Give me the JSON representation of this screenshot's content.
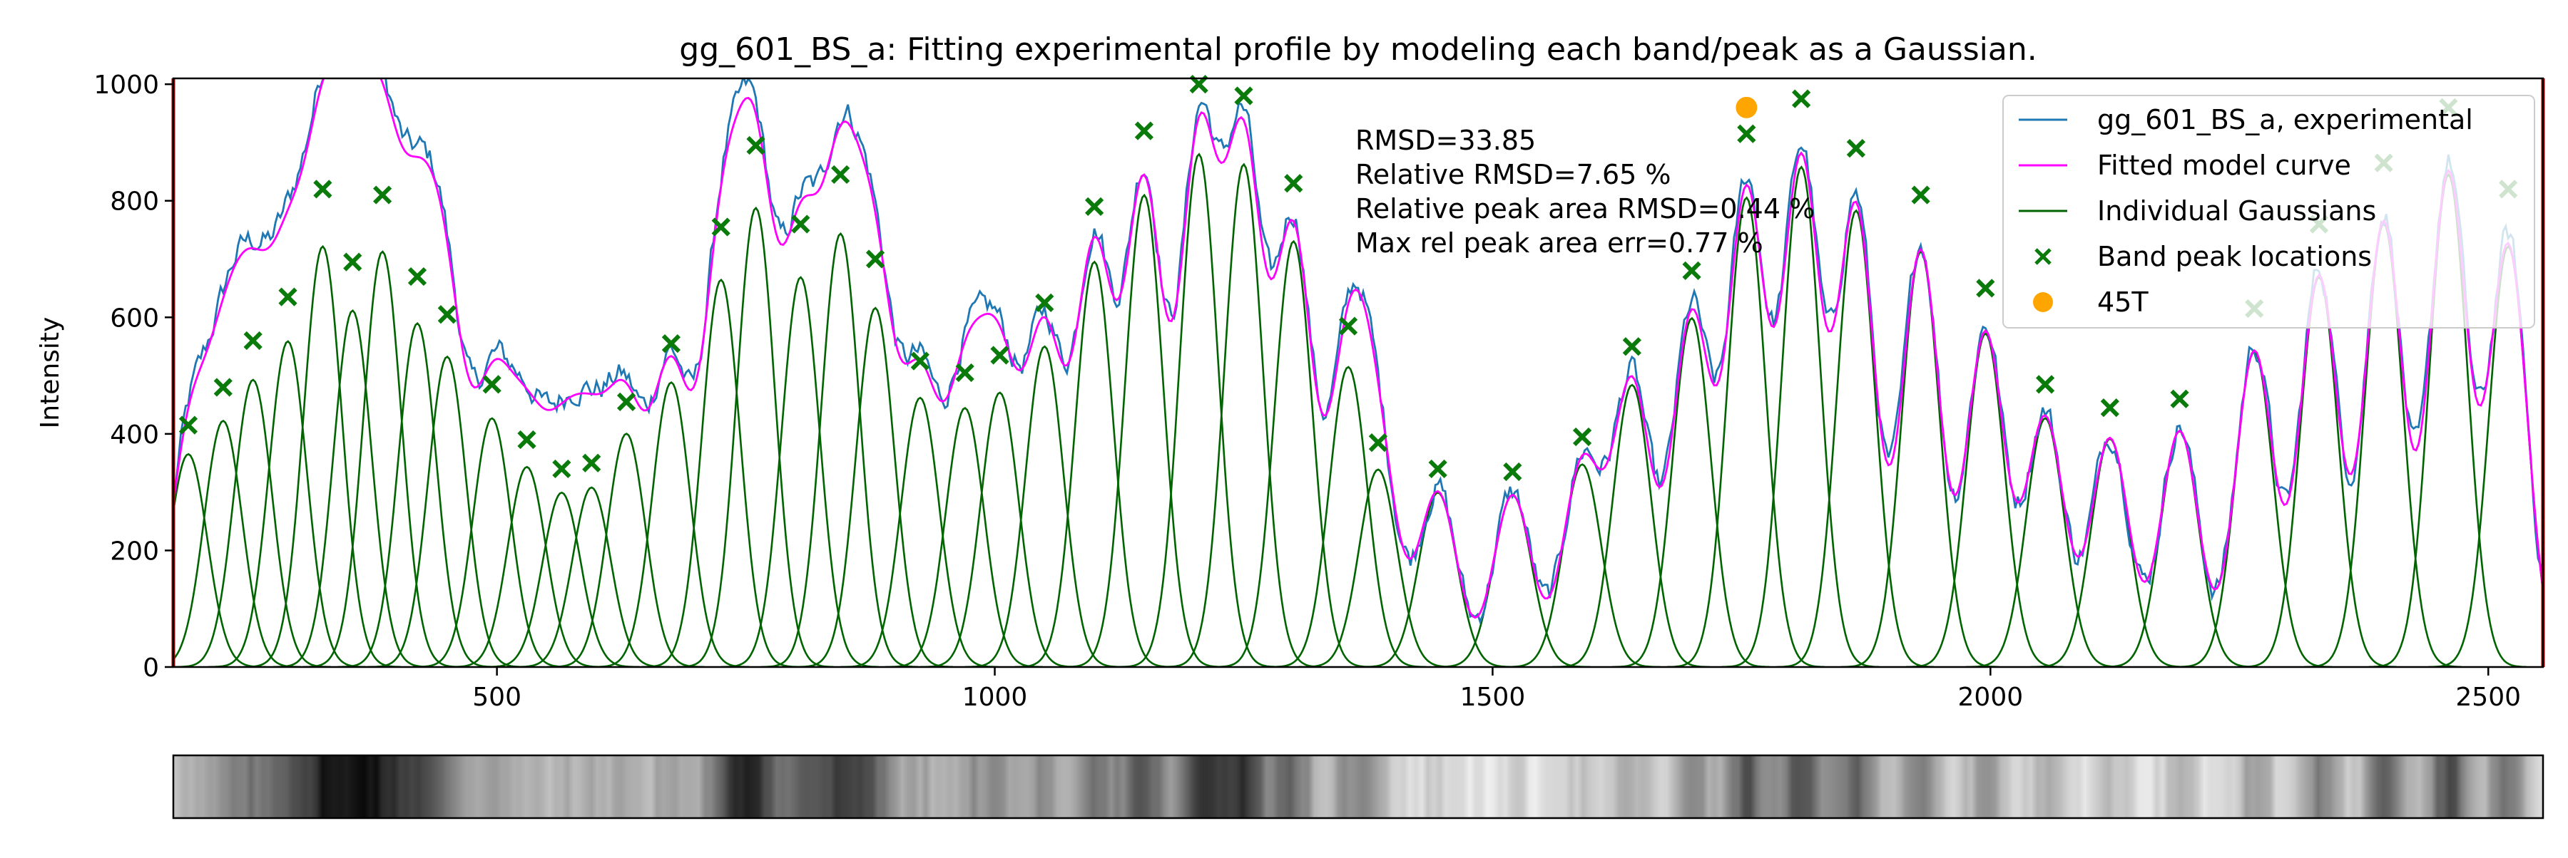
{
  "chart_data": [
    {
      "type": "line",
      "title": "gg_601_BS_a: Fitting experimental profile by modeling each band/peak as a Gaussian.",
      "xlabel": "",
      "ylabel": "Intensity",
      "xlim": [
        175,
        2555
      ],
      "ylim": [
        0,
        1010
      ],
      "xticks": [
        500,
        1000,
        1500,
        2000,
        2500
      ],
      "yticks": [
        0,
        200,
        400,
        600,
        800,
        1000
      ],
      "grid": false,
      "legend_position": "top-right",
      "boundary_lines_x": [
        175,
        2555
      ],
      "annotation_lines": [
        "RMSD=33.85",
        "Relative RMSD=7.65 %",
        "Relative peak area RMSD=0.44 %",
        "Max rel peak area err=0.77 %"
      ],
      "series": [
        {
          "name": "gg_601_BS_a, experimental",
          "kind": "line",
          "color": "#1f77b4"
        },
        {
          "name": "Fitted model curve",
          "kind": "line",
          "color": "#ff00ff"
        },
        {
          "name": "Individual Gaussians",
          "kind": "line",
          "color": "#006400"
        },
        {
          "name": "Band peak locations",
          "kind": "marker-x",
          "color": "#0a7a0a"
        },
        {
          "name": "45T",
          "kind": "marker-dot",
          "color": "#ffa500",
          "points": [
            {
              "x": 1755,
              "y": 960
            }
          ]
        }
      ],
      "gaussian_sigma": 19,
      "peaks": [
        {
          "x": 190,
          "y": 415
        },
        {
          "x": 225,
          "y": 480
        },
        {
          "x": 255,
          "y": 560
        },
        {
          "x": 290,
          "y": 635
        },
        {
          "x": 325,
          "y": 820
        },
        {
          "x": 355,
          "y": 695
        },
        {
          "x": 385,
          "y": 810
        },
        {
          "x": 420,
          "y": 670
        },
        {
          "x": 450,
          "y": 605
        },
        {
          "x": 495,
          "y": 485
        },
        {
          "x": 530,
          "y": 390
        },
        {
          "x": 565,
          "y": 340
        },
        {
          "x": 595,
          "y": 350
        },
        {
          "x": 630,
          "y": 455
        },
        {
          "x": 675,
          "y": 555
        },
        {
          "x": 725,
          "y": 755
        },
        {
          "x": 760,
          "y": 895
        },
        {
          "x": 805,
          "y": 760
        },
        {
          "x": 845,
          "y": 845
        },
        {
          "x": 880,
          "y": 700
        },
        {
          "x": 925,
          "y": 525
        },
        {
          "x": 970,
          "y": 505
        },
        {
          "x": 1005,
          "y": 535
        },
        {
          "x": 1050,
          "y": 625
        },
        {
          "x": 1100,
          "y": 790
        },
        {
          "x": 1150,
          "y": 920
        },
        {
          "x": 1205,
          "y": 1000
        },
        {
          "x": 1250,
          "y": 980
        },
        {
          "x": 1300,
          "y": 830
        },
        {
          "x": 1355,
          "y": 585
        },
        {
          "x": 1385,
          "y": 385
        },
        {
          "x": 1445,
          "y": 340
        },
        {
          "x": 1520,
          "y": 335
        },
        {
          "x": 1590,
          "y": 395
        },
        {
          "x": 1640,
          "y": 550
        },
        {
          "x": 1700,
          "y": 680
        },
        {
          "x": 1755,
          "y": 915
        },
        {
          "x": 1810,
          "y": 975
        },
        {
          "x": 1865,
          "y": 890
        },
        {
          "x": 1930,
          "y": 810
        },
        {
          "x": 1995,
          "y": 650
        },
        {
          "x": 2055,
          "y": 485
        },
        {
          "x": 2120,
          "y": 445
        },
        {
          "x": 2190,
          "y": 460
        },
        {
          "x": 2265,
          "y": 615
        },
        {
          "x": 2330,
          "y": 760
        },
        {
          "x": 2395,
          "y": 865
        },
        {
          "x": 2460,
          "y": 960
        },
        {
          "x": 2520,
          "y": 820
        }
      ]
    },
    {
      "type": "heatmap",
      "title": "",
      "description_kind": "grayscale gel lane intensity strip",
      "colormap": "gray_r"
    }
  ]
}
